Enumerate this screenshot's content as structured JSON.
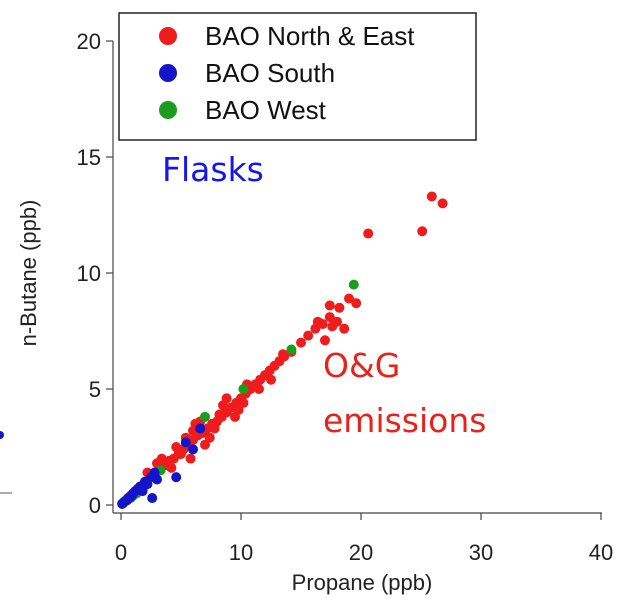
{
  "chart_data": {
    "type": "scatter",
    "title": "",
    "xlabel": "Propane (ppb)",
    "ylabel": "n-Butane (ppb)",
    "xlim": [
      0,
      40
    ],
    "ylim": [
      0,
      20
    ],
    "x_ticks": [
      "0",
      "10",
      "20",
      "30",
      "40"
    ],
    "y_ticks": [
      "0",
      "5",
      "10",
      "15",
      "20"
    ],
    "grid": false,
    "legend_position": "top-left",
    "annotations": [
      {
        "id": "flasks",
        "text": "Flasks",
        "color": "#1515ee"
      },
      {
        "id": "og1",
        "text": "O&G",
        "color": "#e8221b"
      },
      {
        "id": "og2",
        "text": "emissions",
        "color": "#e8221b"
      }
    ],
    "series": [
      {
        "name": "BAO North & East",
        "color": "#ee1c1c",
        "points": [
          [
            0.4,
            0.2
          ],
          [
            0.8,
            0.4
          ],
          [
            1.2,
            0.6
          ],
          [
            1.6,
            0.8
          ],
          [
            2.0,
            1.0
          ],
          [
            2.4,
            1.2
          ],
          [
            2.8,
            1.3
          ],
          [
            3.2,
            1.5
          ],
          [
            3.6,
            1.7
          ],
          [
            4.0,
            1.9
          ],
          [
            4.4,
            2.0
          ],
          [
            4.8,
            2.2
          ],
          [
            5.2,
            2.4
          ],
          [
            5.6,
            2.6
          ],
          [
            6.0,
            2.8
          ],
          [
            6.4,
            3.0
          ],
          [
            6.8,
            3.1
          ],
          [
            7.2,
            3.3
          ],
          [
            7.6,
            3.5
          ],
          [
            8.0,
            3.6
          ],
          [
            8.4,
            3.8
          ],
          [
            8.8,
            4.0
          ],
          [
            9.2,
            4.2
          ],
          [
            9.6,
            4.4
          ],
          [
            10.0,
            4.6
          ],
          [
            10.4,
            4.8
          ],
          [
            10.8,
            5.0
          ],
          [
            11.2,
            5.2
          ],
          [
            11.6,
            5.4
          ],
          [
            12.0,
            5.6
          ],
          [
            12.4,
            5.8
          ],
          [
            12.8,
            6.0
          ],
          [
            13.2,
            6.2
          ],
          [
            13.6,
            6.4
          ],
          [
            14.2,
            6.6
          ],
          [
            15.0,
            7.0
          ],
          [
            15.6,
            7.3
          ],
          [
            16.2,
            7.6
          ],
          [
            16.8,
            7.8
          ],
          [
            17.4,
            8.1
          ],
          [
            18.2,
            8.5
          ],
          [
            19.0,
            8.9
          ],
          [
            19.6,
            8.7
          ],
          [
            17.0,
            7.1
          ],
          [
            17.6,
            7.7
          ],
          [
            18.6,
            7.6
          ],
          [
            16.4,
            7.9
          ],
          [
            18.0,
            7.9
          ],
          [
            17.4,
            8.6
          ],
          [
            20.6,
            11.7
          ],
          [
            25.1,
            11.8
          ],
          [
            25.9,
            13.3
          ],
          [
            26.8,
            13.0
          ],
          [
            5.0,
            2.2
          ],
          [
            6.0,
            3.2
          ],
          [
            7.0,
            2.6
          ],
          [
            8.5,
            4.3
          ],
          [
            9.5,
            3.8
          ],
          [
            10.5,
            5.2
          ],
          [
            11.5,
            5.0
          ],
          [
            4.2,
            1.6
          ],
          [
            3.0,
            1.8
          ],
          [
            5.8,
            2.0
          ],
          [
            6.6,
            3.6
          ],
          [
            7.8,
            3.3
          ],
          [
            8.8,
            4.6
          ],
          [
            9.8,
            4.1
          ],
          [
            12.5,
            5.4
          ],
          [
            13.5,
            6.5
          ],
          [
            2.2,
            1.4
          ],
          [
            3.4,
            2.0
          ],
          [
            4.6,
            2.5
          ],
          [
            5.4,
            2.9
          ],
          [
            6.2,
            3.5
          ],
          [
            7.4,
            2.9
          ],
          [
            8.2,
            3.9
          ],
          [
            10.2,
            4.4
          ]
        ]
      },
      {
        "name": "BAO South",
        "color": "#1414c8",
        "points": [
          [
            0.1,
            0.05
          ],
          [
            0.2,
            0.1
          ],
          [
            0.3,
            0.15
          ],
          [
            0.5,
            0.2
          ],
          [
            0.6,
            0.3
          ],
          [
            0.8,
            0.35
          ],
          [
            1.0,
            0.5
          ],
          [
            1.2,
            0.6
          ],
          [
            1.4,
            0.7
          ],
          [
            0.9,
            0.4
          ],
          [
            1.6,
            0.8
          ],
          [
            2.0,
            1.0
          ],
          [
            2.5,
            1.2
          ],
          [
            2.8,
            1.4
          ],
          [
            2.6,
            0.3
          ],
          [
            3.0,
            1.1
          ],
          [
            4.6,
            1.2
          ],
          [
            5.4,
            2.7
          ],
          [
            6.0,
            2.4
          ],
          [
            6.6,
            3.3
          ],
          [
            2.2,
            0.9
          ],
          [
            1.8,
            0.6
          ]
        ]
      },
      {
        "name": "BAO West",
        "color": "#1c9c1c",
        "points": [
          [
            0.1,
            0.05
          ],
          [
            0.2,
            0.1
          ],
          [
            0.4,
            0.2
          ],
          [
            0.6,
            0.3
          ],
          [
            0.8,
            0.3
          ],
          [
            1.0,
            0.4
          ],
          [
            1.3,
            0.5
          ],
          [
            1.6,
            0.7
          ],
          [
            1.9,
            0.8
          ],
          [
            2.2,
            0.9
          ],
          [
            1.4,
            0.6
          ],
          [
            3.3,
            1.5
          ],
          [
            7.0,
            3.8
          ],
          [
            10.2,
            5.0
          ],
          [
            14.2,
            6.7
          ],
          [
            19.4,
            9.5
          ]
        ]
      }
    ]
  }
}
